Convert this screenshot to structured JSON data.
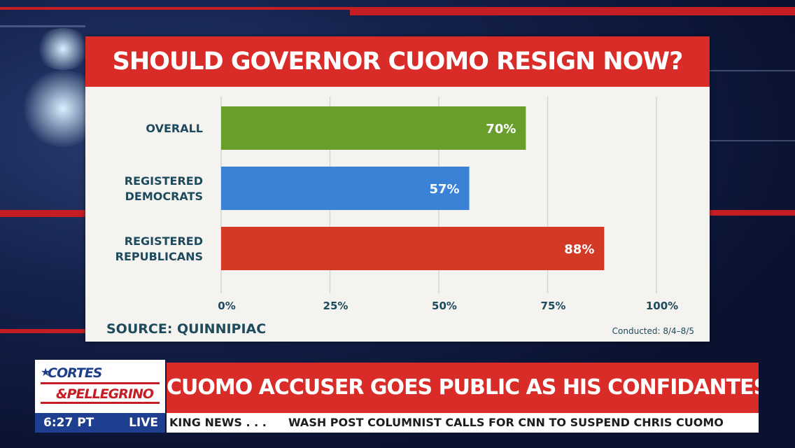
{
  "chart_data": {
    "type": "bar",
    "orientation": "horizontal",
    "title": "SHOULD GOVERNOR CUOMO RESIGN NOW?",
    "categories": [
      "OVERALL",
      "REGISTERED DEMOCRATS",
      "REGISTERED REPUBLICANS"
    ],
    "category_lines": [
      [
        "OVERALL"
      ],
      [
        "REGISTERED",
        "DEMOCRATS"
      ],
      [
        "REGISTERED",
        "REPUBLICANS"
      ]
    ],
    "values": [
      70,
      57,
      88
    ],
    "data_labels": [
      "70%",
      "57%",
      "88%"
    ],
    "bar_colors": [
      "#6a9e2c",
      "#3a82d6",
      "#d33a25"
    ],
    "xlim": [
      0,
      100
    ],
    "x_ticks": [
      0,
      25,
      50,
      75,
      100
    ],
    "x_tick_labels": [
      "0%",
      "25%",
      "50%",
      "75%",
      "100%"
    ],
    "grid": true,
    "source": "SOURCE: QUINNIPIAC",
    "note": "Conducted: 8/4–8/5"
  },
  "lower_third": {
    "logo_line1": "CORTES",
    "logo_line2": "&PELLEGRINO",
    "time": "6:27 PT",
    "live_label": "LIVE",
    "headline": "CUOMO ACCUSER GOES PUBLIC AS HIS CONFIDANTES RESIGN",
    "ticker_left": "KING NEWS . . .",
    "ticker_right": "WASH POST COLUMNIST CALLS FOR CNN TO SUSPEND CHRIS CUOMO"
  },
  "colors": {
    "title_bar": "#d92b27",
    "panel": "#f4f3ef",
    "text_dark": "#1d4a5c",
    "time_bar": "#1e3f8f"
  }
}
